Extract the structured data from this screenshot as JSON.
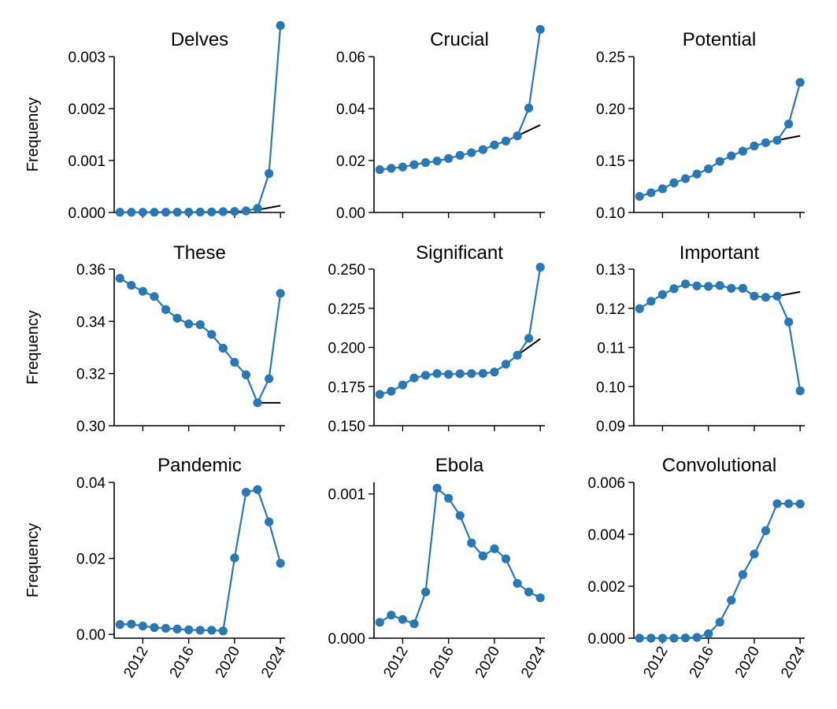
{
  "style": {
    "series_color": "#2878b5",
    "trend_color": "#000000"
  },
  "chart_data": [
    {
      "type": "line",
      "title": "Delves",
      "ylabel": "Frequency",
      "xlim": [
        2009.5,
        2024.4
      ],
      "ylim": [
        0,
        0.003
      ],
      "yticks": [
        0,
        0.001,
        0.002,
        0.003
      ],
      "ytick_labels": [
        "0.000",
        "0.001",
        "0.002",
        "0.003"
      ],
      "xticks": [
        2012,
        2016,
        2020,
        2024
      ],
      "xtick_labels": [],
      "x": [
        2010,
        2011,
        2012,
        2013,
        2014,
        2015,
        2016,
        2017,
        2018,
        2019,
        2020,
        2021,
        2022,
        2023,
        2024
      ],
      "y": [
        5e-06,
        5e-06,
        5e-06,
        5e-06,
        6e-06,
        6e-06,
        7e-06,
        8e-06,
        1e-05,
        1.5e-05,
        2e-05,
        3e-05,
        8e-05,
        0.00075,
        0.0036
      ],
      "trend": {
        "x": [
          2022,
          2024
        ],
        "y": [
          5e-05,
          0.00013
        ]
      }
    },
    {
      "type": "line",
      "title": "Crucial",
      "ylabel": "",
      "xlim": [
        2009.5,
        2024.4
      ],
      "ylim": [
        0,
        0.06
      ],
      "yticks": [
        0,
        0.02,
        0.04,
        0.06
      ],
      "ytick_labels": [
        "0.00",
        "0.02",
        "0.04",
        "0.06"
      ],
      "xticks": [
        2012,
        2016,
        2020,
        2024
      ],
      "xtick_labels": [],
      "x": [
        2010,
        2011,
        2012,
        2013,
        2014,
        2015,
        2016,
        2017,
        2018,
        2019,
        2020,
        2021,
        2022,
        2023,
        2024
      ],
      "y": [
        0.0165,
        0.017,
        0.0175,
        0.0184,
        0.0192,
        0.0198,
        0.0208,
        0.022,
        0.023,
        0.0242,
        0.026,
        0.0275,
        0.0295,
        0.0402,
        0.0705
      ],
      "trend": {
        "x": [
          2022,
          2024
        ],
        "y": [
          0.0295,
          0.0337
        ]
      }
    },
    {
      "type": "line",
      "title": "Potential",
      "ylabel": "",
      "xlim": [
        2009.5,
        2024.4
      ],
      "ylim": [
        0.1,
        0.25
      ],
      "yticks": [
        0.1,
        0.15,
        0.2,
        0.25
      ],
      "ytick_labels": [
        "0.10",
        "0.15",
        "0.20",
        "0.25"
      ],
      "xticks": [
        2012,
        2016,
        2020,
        2024
      ],
      "xtick_labels": [],
      "x": [
        2010,
        2011,
        2012,
        2013,
        2014,
        2015,
        2016,
        2017,
        2018,
        2019,
        2020,
        2021,
        2022,
        2023,
        2024
      ],
      "y": [
        0.1155,
        0.119,
        0.1228,
        0.1285,
        0.1325,
        0.137,
        0.142,
        0.1492,
        0.1545,
        0.159,
        0.164,
        0.1672,
        0.1695,
        0.1852,
        0.2252
      ],
      "trend": {
        "x": [
          2022,
          2024
        ],
        "y": [
          0.1695,
          0.1738
        ]
      }
    },
    {
      "type": "line",
      "title": "These",
      "ylabel": "Frequency",
      "xlim": [
        2009.5,
        2024.4
      ],
      "ylim": [
        0.3,
        0.36
      ],
      "yticks": [
        0.3,
        0.32,
        0.34,
        0.36
      ],
      "ytick_labels": [
        "0.30",
        "0.32",
        "0.34",
        "0.36"
      ],
      "xticks": [
        2012,
        2016,
        2020,
        2024
      ],
      "xtick_labels": [],
      "x": [
        2010,
        2011,
        2012,
        2013,
        2014,
        2015,
        2016,
        2017,
        2018,
        2019,
        2020,
        2021,
        2022,
        2023,
        2024
      ],
      "y": [
        0.3565,
        0.3538,
        0.3515,
        0.3495,
        0.3445,
        0.3412,
        0.339,
        0.3387,
        0.335,
        0.3297,
        0.3243,
        0.3195,
        0.3088,
        0.318,
        0.3507
      ],
      "trend": {
        "x": [
          2022,
          2024
        ],
        "y": [
          0.3088,
          0.3088
        ]
      }
    },
    {
      "type": "line",
      "title": "Significant",
      "ylabel": "",
      "xlim": [
        2009.5,
        2024.4
      ],
      "ylim": [
        0.15,
        0.25
      ],
      "yticks": [
        0.15,
        0.175,
        0.2,
        0.225,
        0.25
      ],
      "ytick_labels": [
        "0.150",
        "0.175",
        "0.200",
        "0.225",
        "0.250"
      ],
      "xticks": [
        2012,
        2016,
        2020,
        2024
      ],
      "xtick_labels": [],
      "x": [
        2010,
        2011,
        2012,
        2013,
        2014,
        2015,
        2016,
        2017,
        2018,
        2019,
        2020,
        2021,
        2022,
        2023,
        2024
      ],
      "y": [
        0.17,
        0.172,
        0.176,
        0.1805,
        0.1822,
        0.1833,
        0.1828,
        0.1832,
        0.1833,
        0.1834,
        0.1843,
        0.1893,
        0.195,
        0.2058,
        0.2512
      ],
      "trend": {
        "x": [
          2022,
          2024
        ],
        "y": [
          0.195,
          0.2055
        ]
      }
    },
    {
      "type": "line",
      "title": "Important",
      "ylabel": "",
      "xlim": [
        2009.5,
        2024.4
      ],
      "ylim": [
        0.09,
        0.13
      ],
      "yticks": [
        0.09,
        0.1,
        0.11,
        0.12,
        0.13
      ],
      "ytick_labels": [
        "0.09",
        "0.10",
        "0.11",
        "0.12",
        "0.13"
      ],
      "xticks": [
        2012,
        2016,
        2020,
        2024
      ],
      "xtick_labels": [],
      "x": [
        2010,
        2011,
        2012,
        2013,
        2014,
        2015,
        2016,
        2017,
        2018,
        2019,
        2020,
        2021,
        2022,
        2023,
        2024
      ],
      "y": [
        0.1199,
        0.1218,
        0.1235,
        0.125,
        0.1262,
        0.1257,
        0.1256,
        0.1258,
        0.1251,
        0.1251,
        0.1231,
        0.1228,
        0.1231,
        0.1165,
        0.0989
      ],
      "trend": {
        "x": [
          2022,
          2024
        ],
        "y": [
          0.1231,
          0.1242
        ]
      }
    },
    {
      "type": "line",
      "title": "Pandemic",
      "ylabel": "Frequency",
      "xlim": [
        2009.5,
        2024.4
      ],
      "ylim": [
        -0.001,
        0.04
      ],
      "yticks": [
        0,
        0.02,
        0.04
      ],
      "ytick_labels": [
        "0.00",
        "0.02",
        "0.04"
      ],
      "xticks": [
        2012,
        2016,
        2020,
        2024
      ],
      "xtick_labels": [
        "2012",
        "2016",
        "2020",
        "2024"
      ],
      "x": [
        2010,
        2011,
        2012,
        2013,
        2014,
        2015,
        2016,
        2017,
        2018,
        2019,
        2020,
        2021,
        2022,
        2023,
        2024
      ],
      "y": [
        0.0026,
        0.0027,
        0.0022,
        0.0018,
        0.0016,
        0.0014,
        0.0012,
        0.0011,
        0.0011,
        0.0009,
        0.0201,
        0.0374,
        0.0381,
        0.0296,
        0.0187
      ]
    },
    {
      "type": "line",
      "title": "Ebola",
      "ylabel": "",
      "xlim": [
        2009.5,
        2024.4
      ],
      "ylim": [
        0,
        0.00108
      ],
      "yticks": [
        0,
        0.001
      ],
      "ytick_labels": [
        "0.000",
        "0.001"
      ],
      "xticks": [
        2012,
        2016,
        2020,
        2024
      ],
      "xtick_labels": [
        "2012",
        "2016",
        "2020",
        "2024"
      ],
      "x": [
        2010,
        2011,
        2012,
        2013,
        2014,
        2015,
        2016,
        2017,
        2018,
        2019,
        2020,
        2021,
        2022,
        2023,
        2024
      ],
      "y": [
        0.00011,
        0.00016,
        0.00013,
        0.0001,
        0.00032,
        0.00104,
        0.00097,
        0.00085,
        0.00066,
        0.00057,
        0.00062,
        0.00055,
        0.00038,
        0.00032,
        0.00028
      ]
    },
    {
      "type": "line",
      "title": "Convolutional",
      "ylabel": "",
      "xlim": [
        2009.5,
        2024.4
      ],
      "ylim": [
        0,
        0.006
      ],
      "yticks": [
        0,
        0.002,
        0.004,
        0.006
      ],
      "ytick_labels": [
        "0.000",
        "0.002",
        "0.004",
        "0.006"
      ],
      "xticks": [
        2012,
        2016,
        2020,
        2024
      ],
      "xtick_labels": [
        "2012",
        "2016",
        "2020",
        "2024"
      ],
      "x": [
        2010,
        2011,
        2012,
        2013,
        2014,
        2015,
        2016,
        2017,
        2018,
        2019,
        2020,
        2021,
        2022,
        2023,
        2024
      ],
      "y": [
        0,
        0,
        0,
        0,
        1e-05,
        3e-05,
        0.00017,
        0.00062,
        0.00146,
        0.00245,
        0.00324,
        0.00414,
        0.00518,
        0.00518,
        0.00517
      ]
    }
  ]
}
